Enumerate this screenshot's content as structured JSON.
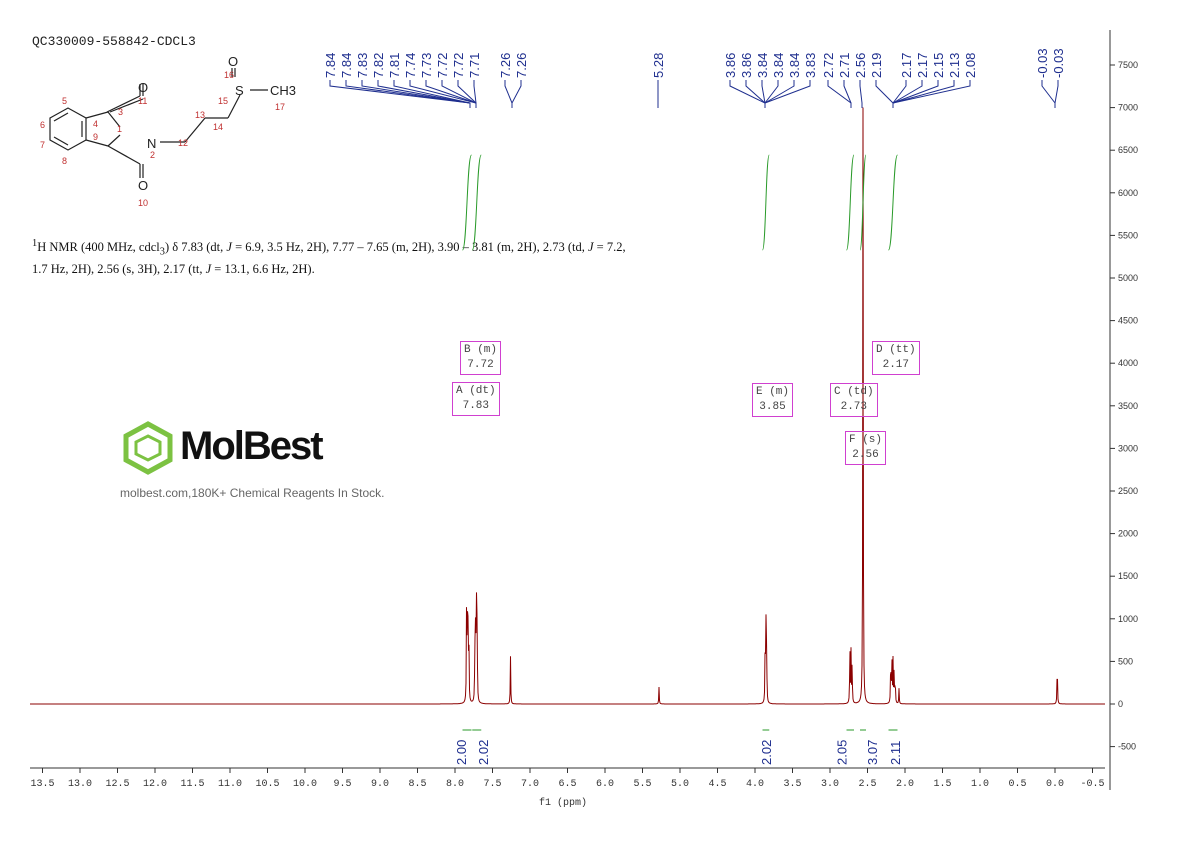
{
  "title": "QC330009-558842-CDCL3",
  "description_html": "<sup>1</sup>H NMR (400 MHz, cdcl<sub>3</sub>) δ 7.83 (dt, <i>J</i> = 6.9, 3.5 Hz, 2H), 7.77 – 7.65 (m, 2H), 3.90 – 3.81 (m, 2H), 2.73 (td, <i>J</i> = 7.2, 1.7 Hz, 2H), 2.56 (s, 3H), 2.17 (tt, <i>J</i> = 13.1, 6.6 Hz, 2H).",
  "watermark": {
    "brand": "MolBest",
    "tagline": "molbest.com,180K+ Chemical Reagents In Stock."
  },
  "molecule": {
    "atom_labels": [
      "O",
      "O",
      "N",
      "S",
      "O",
      "CH3"
    ],
    "numbers": [
      "1",
      "2",
      "3",
      "4",
      "5",
      "6",
      "7",
      "8",
      "9",
      "10",
      "11",
      "12",
      "13",
      "14",
      "15",
      "16",
      "17"
    ]
  },
  "chart_data": {
    "type": "line",
    "xlabel": "f1 (ppm)",
    "xlim": [
      13.5,
      -0.5
    ],
    "ylim": [
      -800,
      7900
    ],
    "x_ticks": [
      "13.5",
      "13.0",
      "12.5",
      "12.0",
      "11.5",
      "11.0",
      "10.5",
      "10.0",
      "9.5",
      "9.0",
      "8.5",
      "8.0",
      "7.5",
      "7.0",
      "6.5",
      "6.0",
      "5.5",
      "5.0",
      "4.5",
      "4.0",
      "3.5",
      "3.0",
      "2.5",
      "2.0",
      "1.5",
      "1.0",
      "0.5",
      "0.0",
      "-0.5"
    ],
    "y_ticks": [
      -500,
      0,
      500,
      1000,
      1500,
      2000,
      2500,
      3000,
      3500,
      4000,
      4500,
      5000,
      5500,
      6000,
      6500,
      7000,
      7500
    ],
    "peak_labels": [
      "7.84",
      "7.84",
      "7.83",
      "7.82",
      "7.81",
      "7.74",
      "7.73",
      "7.72",
      "7.72",
      "7.71",
      "7.26",
      "7.26",
      "5.28",
      "3.86",
      "3.86",
      "3.84",
      "3.84",
      "3.84",
      "3.83",
      "2.72",
      "2.71",
      "2.56",
      "2.19",
      "2.17",
      "2.17",
      "2.15",
      "2.13",
      "2.08",
      "-0.03",
      "-0.03"
    ],
    "peaks": [
      [
        7.845,
        1250
      ],
      [
        7.835,
        1000
      ],
      [
        7.825,
        950
      ],
      [
        7.815,
        700
      ],
      [
        7.735,
        700
      ],
      [
        7.725,
        950
      ],
      [
        7.715,
        1300
      ],
      [
        7.705,
        1000
      ],
      [
        7.26,
        560
      ],
      [
        5.28,
        200
      ],
      [
        3.865,
        600
      ],
      [
        3.855,
        1100
      ],
      [
        3.845,
        700
      ],
      [
        2.735,
        700
      ],
      [
        2.72,
        600
      ],
      [
        2.705,
        500
      ],
      [
        2.56,
        7000
      ],
      [
        2.19,
        600
      ],
      [
        2.175,
        560
      ],
      [
        2.16,
        500
      ],
      [
        2.145,
        420
      ],
      [
        2.13,
        300
      ],
      [
        2.08,
        180
      ],
      [
        -0.03,
        550
      ]
    ],
    "integrals": [
      {
        "value": "2.00",
        "range": [
          7.9,
          7.78
        ]
      },
      {
        "value": "2.02",
        "range": [
          7.77,
          7.65
        ]
      },
      {
        "value": "2.02",
        "range": [
          3.9,
          3.81
        ]
      },
      {
        "value": "2.05",
        "range": [
          2.78,
          2.68
        ]
      },
      {
        "value": "3.07",
        "range": [
          2.6,
          2.52
        ]
      },
      {
        "value": "2.11",
        "range": [
          2.22,
          2.1
        ]
      }
    ],
    "multiplets": [
      {
        "label": "A (dt)",
        "shift": "7.83"
      },
      {
        "label": "B (m)",
        "shift": "7.72"
      },
      {
        "label": "E (m)",
        "shift": "3.85"
      },
      {
        "label": "C (td)",
        "shift": "2.73"
      },
      {
        "label": "D (tt)",
        "shift": "2.17"
      },
      {
        "label": "F (s)",
        "shift": "2.56"
      }
    ],
    "colors": {
      "spectrum": "#8b0000",
      "peak_labels": "#1f2f8f",
      "integral": "#2a9a2a",
      "multiplet_box": "#d040d0"
    }
  }
}
